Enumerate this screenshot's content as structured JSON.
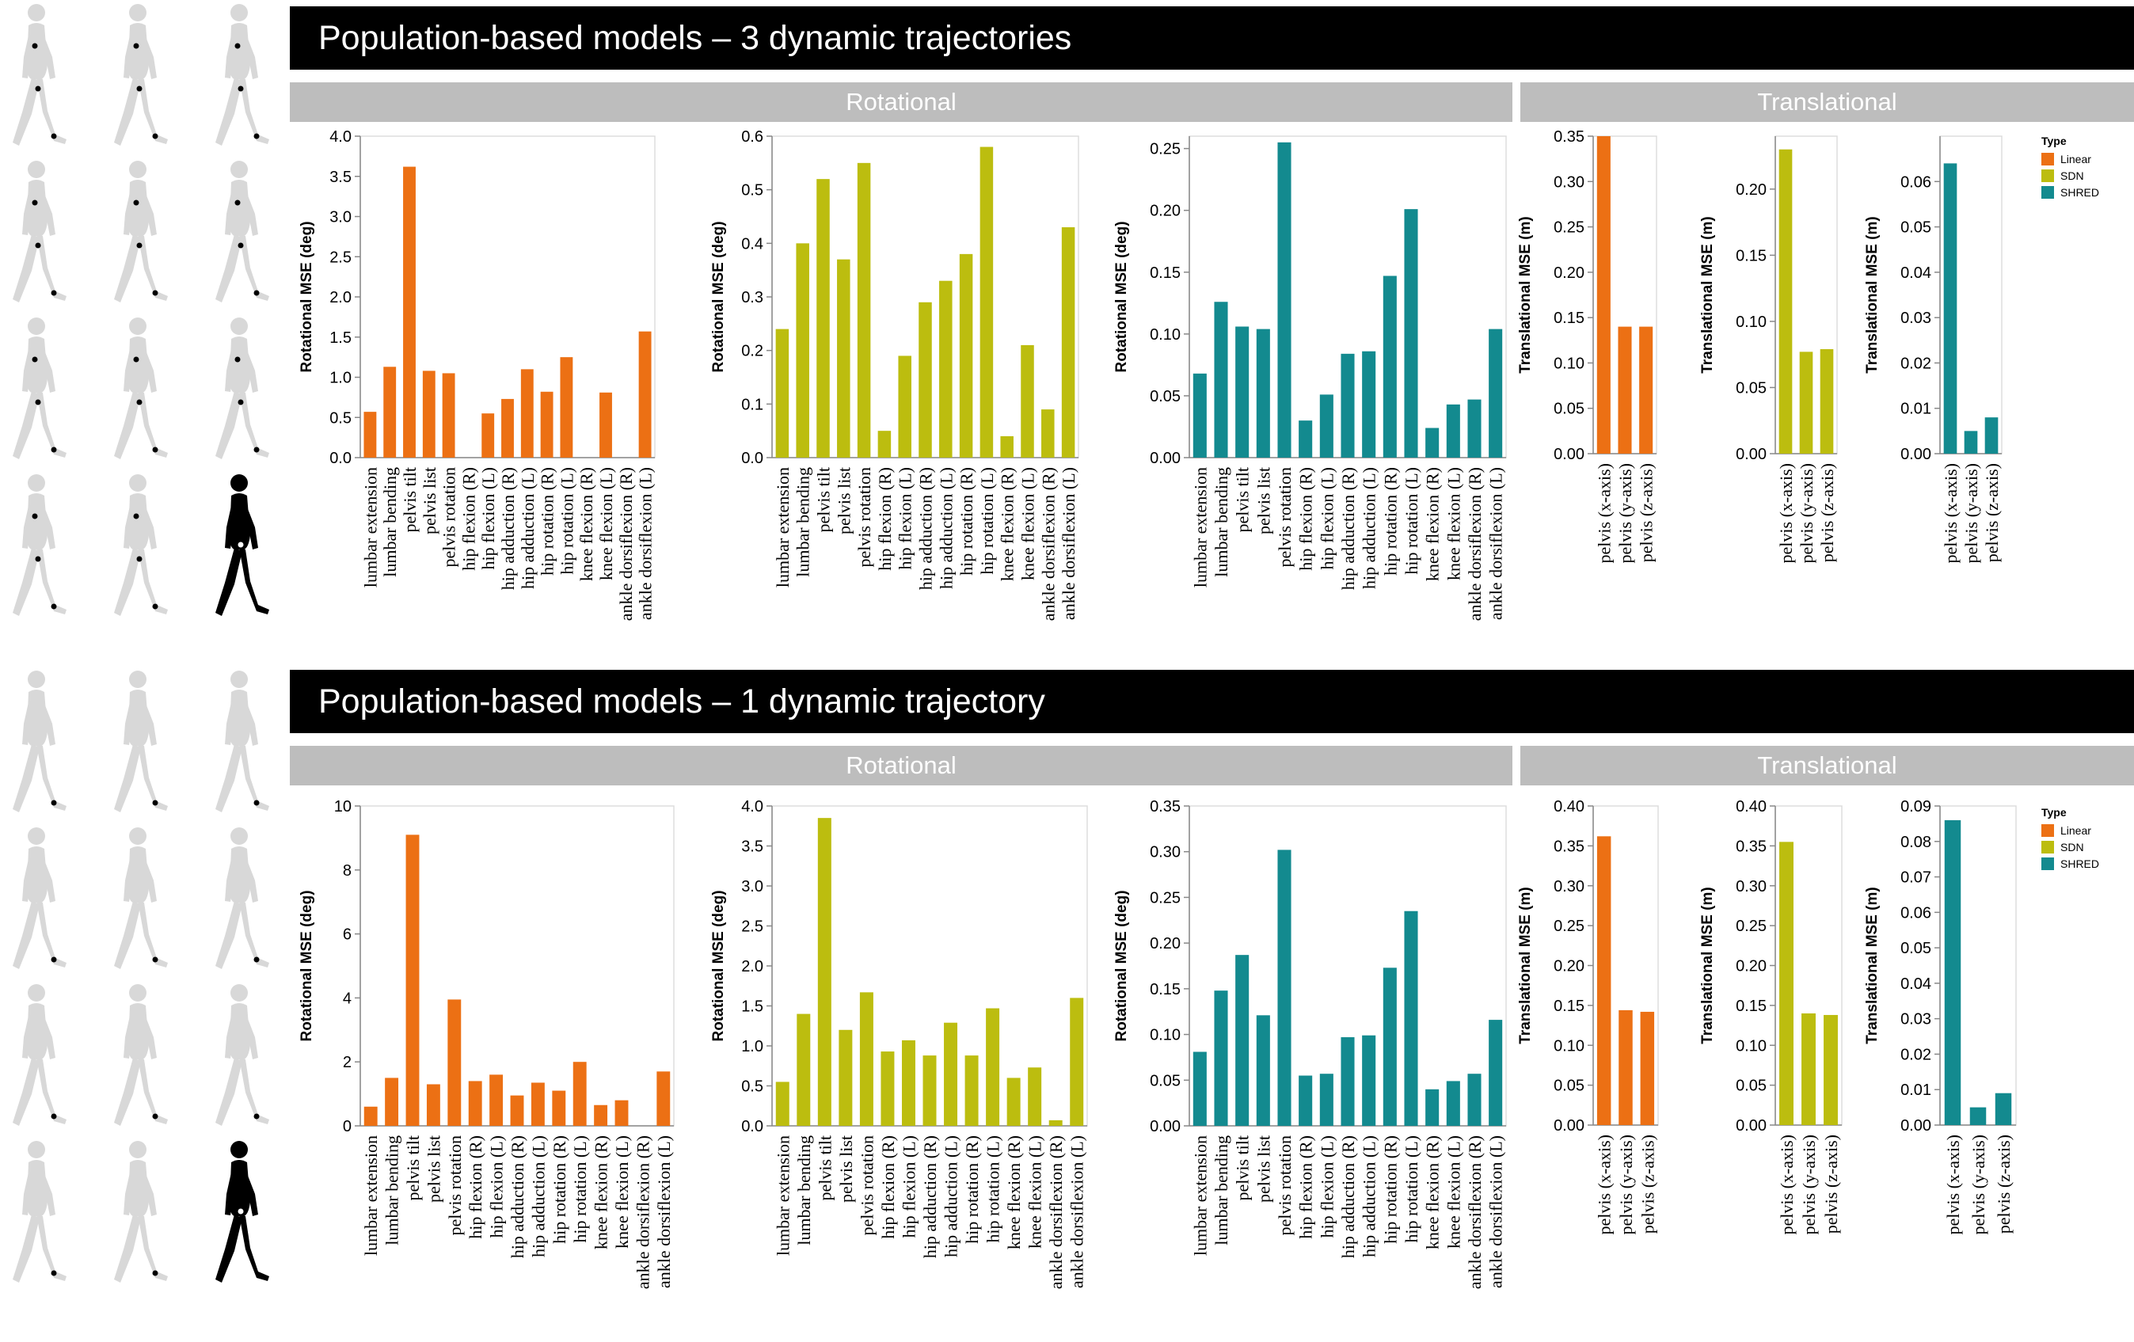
{
  "panels": [
    {
      "title": "Population-based models – 3 dynamic trajectories",
      "rotational_label": "Rotational",
      "translational_label": "Translational",
      "legend": {
        "title": "Type",
        "items": [
          {
            "label": "Linear"
          },
          {
            "label": "SDN"
          },
          {
            "label": "SHRED"
          }
        ]
      }
    },
    {
      "title": "Population-based models – 1 dynamic trajectory",
      "rotational_label": "Rotational",
      "translational_label": "Translational",
      "legend": {
        "title": "Type",
        "items": [
          {
            "label": "Linear"
          },
          {
            "label": "SDN"
          },
          {
            "label": "SHRED"
          }
        ]
      }
    }
  ],
  "colors": {
    "Linear": "#ec7014",
    "SDN": "#bcbd0f",
    "SHRED": "#138a8f"
  },
  "chart_data": [
    {
      "id": "r1_lin",
      "panel": 0,
      "type": "bar",
      "series": "Linear",
      "ylabel": "Rotational MSE (deg)",
      "ylim": [
        0,
        4.0
      ],
      "ticks": [
        0,
        0.5,
        1.0,
        1.5,
        2.0,
        2.5,
        3.0,
        3.5,
        4.0
      ],
      "decimals": 1,
      "categories": [
        "lumbar extension",
        "lumbar bending",
        "pelvis tilt",
        "pelvis list",
        "pelvis rotation",
        "hip flexion (R)",
        "hip flexion (L)",
        "hip adduction (R)",
        "hip adduction (L)",
        "hip rotation (R)",
        "hip rotation (L)",
        "knee flexion (R)",
        "knee flexion (L)",
        "ankle dorsiflexion (R)",
        "ankle dorsiflexion (L)"
      ],
      "values": [
        0.57,
        1.13,
        3.62,
        1.08,
        1.05,
        null,
        0.55,
        0.73,
        1.1,
        0.82,
        1.25,
        null,
        0.81,
        null,
        1.57
      ]
    },
    {
      "id": "r1_sdn",
      "panel": 0,
      "type": "bar",
      "series": "SDN",
      "ylabel": "Rotational MSE (deg)",
      "ylim": [
        0,
        0.6
      ],
      "ticks": [
        0,
        0.1,
        0.2,
        0.3,
        0.4,
        0.5,
        0.6
      ],
      "decimals": 1,
      "categories": [
        "lumbar extension",
        "lumbar bending",
        "pelvis tilt",
        "pelvis list",
        "pelvis rotation",
        "hip flexion (R)",
        "hip flexion (L)",
        "hip adduction (R)",
        "hip adduction (L)",
        "hip rotation (R)",
        "hip rotation (L)",
        "knee flexion (R)",
        "knee flexion (L)",
        "ankle dorsiflexion (R)",
        "ankle dorsiflexion (L)"
      ],
      "values": [
        0.24,
        0.4,
        0.52,
        0.37,
        0.55,
        0.05,
        0.19,
        0.29,
        0.33,
        0.38,
        0.58,
        0.04,
        0.21,
        0.09,
        0.43
      ]
    },
    {
      "id": "r1_shred",
      "panel": 0,
      "type": "bar",
      "series": "SHRED",
      "ylabel": "Rotational MSE (deg)",
      "ylim": [
        0,
        0.26
      ],
      "ticks": [
        0,
        0.05,
        0.1,
        0.15,
        0.2,
        0.25
      ],
      "decimals": 2,
      "categories": [
        "lumbar extension",
        "lumbar bending",
        "pelvis tilt",
        "pelvis list",
        "pelvis rotation",
        "hip flexion (R)",
        "hip flexion (L)",
        "hip adduction (R)",
        "hip adduction (L)",
        "hip rotation (R)",
        "hip rotation (L)",
        "knee flexion (R)",
        "knee flexion (L)",
        "ankle dorsiflexion (R)",
        "ankle dorsiflexion (L)"
      ],
      "values": [
        0.068,
        0.126,
        0.106,
        0.104,
        0.255,
        0.03,
        0.051,
        0.084,
        0.086,
        0.147,
        0.201,
        0.024,
        0.043,
        0.047,
        0.104
      ]
    },
    {
      "id": "t1_lin",
      "panel": 0,
      "type": "bar",
      "series": "Linear",
      "ylabel": "Translational MSE (m)",
      "ylim": [
        0,
        0.35
      ],
      "ticks": [
        0,
        0.05,
        0.1,
        0.15,
        0.2,
        0.25,
        0.3,
        0.35
      ],
      "decimals": 2,
      "categories": [
        "pelvis (x-axis)",
        "pelvis (y-axis)",
        "pelvis (z-axis)"
      ],
      "values": [
        0.35,
        0.14,
        0.14
      ]
    },
    {
      "id": "t1_sdn",
      "panel": 0,
      "type": "bar",
      "series": "SDN",
      "ylabel": "Translational MSE (m)",
      "ylim": [
        0,
        0.24
      ],
      "ticks": [
        0,
        0.05,
        0.1,
        0.15,
        0.2
      ],
      "decimals": 2,
      "categories": [
        "pelvis (x-axis)",
        "pelvis (y-axis)",
        "pelvis (z-axis)"
      ],
      "values": [
        0.23,
        0.077,
        0.079
      ]
    },
    {
      "id": "t1_shred",
      "panel": 0,
      "type": "bar",
      "series": "SHRED",
      "ylabel": "Translational MSE (m)",
      "ylim": [
        0,
        0.07
      ],
      "ticks": [
        0,
        0.01,
        0.02,
        0.03,
        0.04,
        0.05,
        0.06
      ],
      "decimals": 2,
      "categories": [
        "pelvis (x-axis)",
        "pelvis (y-axis)",
        "pelvis (z-axis)"
      ],
      "values": [
        0.064,
        0.005,
        0.008
      ]
    },
    {
      "id": "r2_lin",
      "panel": 1,
      "type": "bar",
      "series": "Linear",
      "ylabel": "Rotational MSE (deg)",
      "ylim": [
        0,
        10
      ],
      "ticks": [
        0,
        2,
        4,
        6,
        8,
        10
      ],
      "decimals": 0,
      "categories": [
        "lumbar extension",
        "lumbar bending",
        "pelvis tilt",
        "pelvis list",
        "pelvis rotation",
        "hip flexion (R)",
        "hip flexion (L)",
        "hip adduction (R)",
        "hip adduction (L)",
        "hip rotation (R)",
        "hip rotation (L)",
        "knee flexion (R)",
        "knee flexion (L)",
        "ankle dorsiflexion (R)",
        "ankle dorsiflexion (L)"
      ],
      "values": [
        0.6,
        1.5,
        9.1,
        1.3,
        3.95,
        1.4,
        1.6,
        0.95,
        1.35,
        1.1,
        2.0,
        0.65,
        0.8,
        null,
        1.7
      ]
    },
    {
      "id": "r2_sdn",
      "panel": 1,
      "type": "bar",
      "series": "SDN",
      "ylabel": "Rotational MSE (deg)",
      "ylim": [
        0,
        4.0
      ],
      "ticks": [
        0,
        0.5,
        1.0,
        1.5,
        2.0,
        2.5,
        3.0,
        3.5,
        4.0
      ],
      "decimals": 1,
      "categories": [
        "lumbar extension",
        "lumbar bending",
        "pelvis tilt",
        "pelvis list",
        "pelvis rotation",
        "hip flexion (R)",
        "hip flexion (L)",
        "hip adduction (R)",
        "hip adduction (L)",
        "hip rotation (R)",
        "hip rotation (L)",
        "knee flexion (R)",
        "knee flexion (L)",
        "ankle dorsiflexion (R)",
        "ankle dorsiflexion (L)"
      ],
      "values": [
        0.55,
        1.4,
        3.85,
        1.2,
        1.67,
        0.93,
        1.07,
        0.88,
        1.29,
        0.88,
        1.47,
        0.6,
        0.73,
        0.07,
        1.6
      ]
    },
    {
      "id": "r2_shred",
      "panel": 1,
      "type": "bar",
      "series": "SHRED",
      "ylabel": "Rotational MSE (deg)",
      "ylim": [
        0,
        0.35
      ],
      "ticks": [
        0,
        0.05,
        0.1,
        0.15,
        0.2,
        0.25,
        0.3,
        0.35
      ],
      "decimals": 2,
      "categories": [
        "lumbar extension",
        "lumbar bending",
        "pelvis tilt",
        "pelvis list",
        "pelvis rotation",
        "hip flexion (R)",
        "hip flexion (L)",
        "hip adduction (R)",
        "hip adduction (L)",
        "hip rotation (R)",
        "hip rotation (L)",
        "knee flexion (R)",
        "knee flexion (L)",
        "ankle dorsiflexion (R)",
        "ankle dorsiflexion (L)"
      ],
      "values": [
        0.081,
        0.148,
        0.187,
        0.121,
        0.302,
        0.055,
        0.057,
        0.097,
        0.099,
        0.173,
        0.235,
        0.04,
        0.049,
        0.057,
        0.116
      ]
    },
    {
      "id": "t2_lin",
      "panel": 1,
      "type": "bar",
      "series": "Linear",
      "ylabel": "Translational MSE (m)",
      "ylim": [
        0,
        0.4
      ],
      "ticks": [
        0,
        0.05,
        0.1,
        0.15,
        0.2,
        0.25,
        0.3,
        0.35,
        0.4
      ],
      "decimals": 2,
      "categories": [
        "pelvis (x-axis)",
        "pelvis (y-axis)",
        "pelvis (z-axis)"
      ],
      "values": [
        0.362,
        0.144,
        0.142
      ]
    },
    {
      "id": "t2_sdn",
      "panel": 1,
      "type": "bar",
      "series": "SDN",
      "ylabel": "Translational MSE (m)",
      "ylim": [
        0,
        0.4
      ],
      "ticks": [
        0,
        0.05,
        0.1,
        0.15,
        0.2,
        0.25,
        0.3,
        0.35,
        0.4
      ],
      "decimals": 2,
      "categories": [
        "pelvis (x-axis)",
        "pelvis (y-axis)",
        "pelvis (z-axis)"
      ],
      "values": [
        0.355,
        0.14,
        0.138
      ]
    },
    {
      "id": "t2_shred",
      "panel": 1,
      "type": "bar",
      "series": "SHRED",
      "ylabel": "Translational MSE (m)",
      "ylim": [
        0,
        0.09
      ],
      "ticks": [
        0,
        0.01,
        0.02,
        0.03,
        0.04,
        0.05,
        0.06,
        0.07,
        0.08,
        0.09
      ],
      "decimals": 2,
      "categories": [
        "pelvis (x-axis)",
        "pelvis (y-axis)",
        "pelvis (z-axis)"
      ],
      "values": [
        0.086,
        0.005,
        0.009
      ]
    }
  ]
}
